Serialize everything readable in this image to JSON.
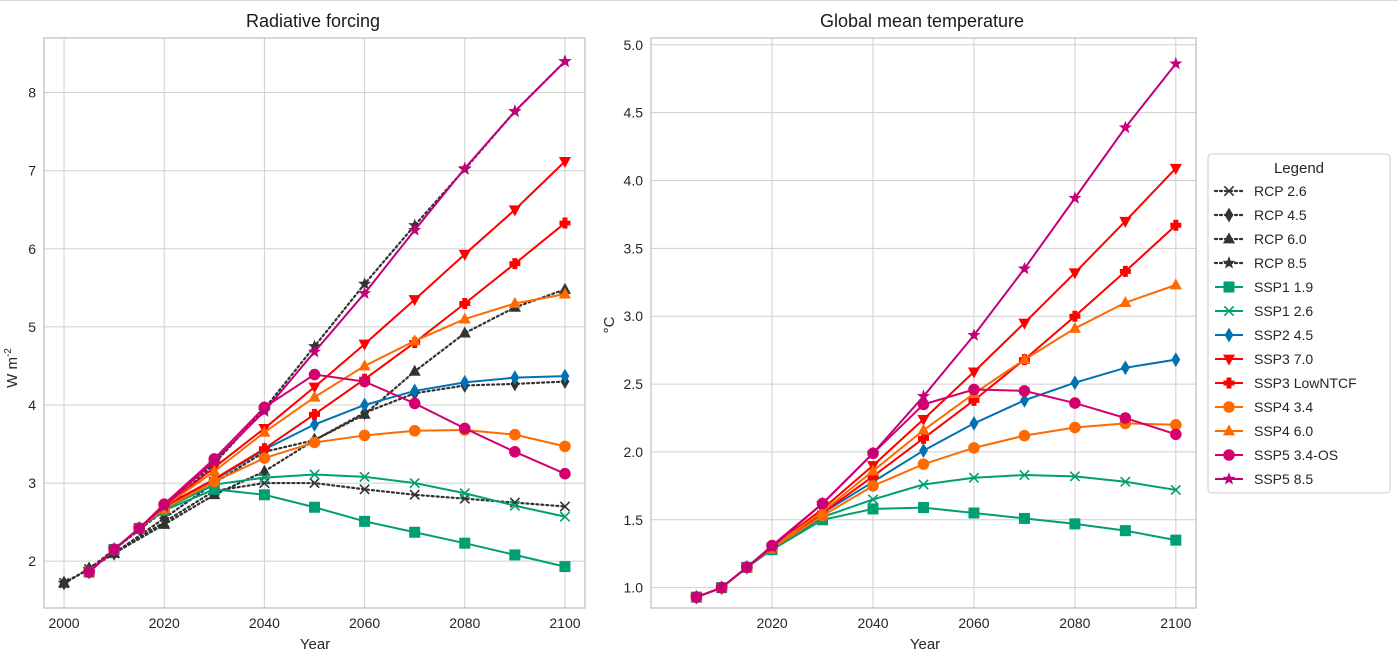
{
  "chart_data": [
    {
      "type": "line",
      "title": "Radiative forcing",
      "xlabel": "Year",
      "ylabel": "W m",
      "ylabel_sup": "-2",
      "xlim": [
        1996,
        2104
      ],
      "ylim": [
        1.4,
        8.7
      ],
      "xticks": [
        2000,
        2020,
        2040,
        2060,
        2080,
        2100
      ],
      "yticks": [
        2,
        3,
        4,
        5,
        6,
        7,
        8
      ],
      "grid": true,
      "series": [
        {
          "name": "RCP 2.6",
          "color": "#333333",
          "dash": true,
          "marker": "x",
          "x": [
            2000,
            2005,
            2010,
            2020,
            2030,
            2040,
            2050,
            2060,
            2070,
            2080,
            2090,
            2100
          ],
          "y": [
            1.72,
            1.9,
            2.1,
            2.5,
            2.9,
            3.0,
            3.0,
            2.92,
            2.85,
            2.8,
            2.75,
            2.7
          ]
        },
        {
          "name": "RCP 4.5",
          "color": "#333333",
          "dash": true,
          "marker": "diamond",
          "x": [
            2000,
            2005,
            2010,
            2020,
            2030,
            2040,
            2050,
            2060,
            2070,
            2080,
            2090,
            2100
          ],
          "y": [
            1.72,
            1.9,
            2.1,
            2.55,
            3.0,
            3.4,
            3.55,
            3.9,
            4.15,
            4.25,
            4.27,
            4.3
          ]
        },
        {
          "name": "RCP 6.0",
          "color": "#333333",
          "dash": true,
          "marker": "triangle",
          "x": [
            2000,
            2005,
            2010,
            2020,
            2030,
            2040,
            2050,
            2060,
            2070,
            2080,
            2090,
            2100
          ],
          "y": [
            1.72,
            1.9,
            2.1,
            2.47,
            2.85,
            3.15,
            3.55,
            3.88,
            4.43,
            4.92,
            5.25,
            5.48
          ]
        },
        {
          "name": "RCP 8.5",
          "color": "#333333",
          "dash": true,
          "marker": "star",
          "x": [
            2000,
            2005,
            2010,
            2020,
            2030,
            2040,
            2050,
            2060,
            2070,
            2080,
            2090,
            2100
          ],
          "y": [
            1.72,
            1.9,
            2.15,
            2.65,
            3.25,
            3.95,
            4.75,
            5.55,
            6.3,
            7.02,
            7.76,
            8.4
          ]
        },
        {
          "name": "SSP1 1.9",
          "color": "#009e73",
          "dash": false,
          "marker": "square",
          "x": [
            2005,
            2010,
            2015,
            2020,
            2030,
            2040,
            2050,
            2060,
            2070,
            2080,
            2090,
            2100
          ],
          "y": [
            1.86,
            2.15,
            2.42,
            2.65,
            2.92,
            2.85,
            2.69,
            2.51,
            2.37,
            2.23,
            2.08,
            1.93
          ]
        },
        {
          "name": "SSP1 2.6",
          "color": "#009e73",
          "dash": false,
          "marker": "x",
          "x": [
            2005,
            2010,
            2015,
            2020,
            2030,
            2040,
            2050,
            2060,
            2070,
            2080,
            2090,
            2100
          ],
          "y": [
            1.86,
            2.15,
            2.42,
            2.67,
            2.98,
            3.07,
            3.11,
            3.08,
            3.0,
            2.87,
            2.71,
            2.57
          ]
        },
        {
          "name": "SSP2 4.5",
          "color": "#0072b2",
          "dash": false,
          "marker": "diamond",
          "x": [
            2005,
            2010,
            2015,
            2020,
            2030,
            2040,
            2050,
            2060,
            2070,
            2080,
            2090,
            2100
          ],
          "y": [
            1.86,
            2.15,
            2.42,
            2.68,
            3.04,
            3.43,
            3.75,
            4.0,
            4.18,
            4.29,
            4.35,
            4.37
          ]
        },
        {
          "name": "SSP3 7.0",
          "color": "#ff0000",
          "dash": false,
          "marker": "triangle-down",
          "x": [
            2005,
            2010,
            2015,
            2020,
            2030,
            2040,
            2050,
            2060,
            2070,
            2080,
            2090,
            2100
          ],
          "y": [
            1.86,
            2.15,
            2.42,
            2.7,
            3.2,
            3.7,
            4.23,
            4.78,
            5.35,
            5.93,
            6.5,
            7.12
          ]
        },
        {
          "name": "SSP3 LowNTCF",
          "color": "#ff0000",
          "dash": false,
          "marker": "plus",
          "x": [
            2005,
            2010,
            2015,
            2020,
            2030,
            2040,
            2050,
            2060,
            2070,
            2080,
            2090,
            2100
          ],
          "y": [
            1.86,
            2.15,
            2.42,
            2.7,
            3.05,
            3.44,
            3.88,
            4.33,
            4.8,
            5.3,
            5.81,
            6.33
          ]
        },
        {
          "name": "SSP4 3.4",
          "color": "#ff6a00",
          "dash": false,
          "marker": "circle",
          "x": [
            2005,
            2010,
            2015,
            2020,
            2030,
            2040,
            2050,
            2060,
            2070,
            2080,
            2090,
            2100
          ],
          "y": [
            1.86,
            2.15,
            2.42,
            2.67,
            3.02,
            3.32,
            3.52,
            3.61,
            3.67,
            3.68,
            3.62,
            3.47
          ]
        },
        {
          "name": "SSP4 6.0",
          "color": "#ff6a00",
          "dash": false,
          "marker": "triangle",
          "x": [
            2005,
            2010,
            2015,
            2020,
            2030,
            2040,
            2050,
            2060,
            2070,
            2080,
            2090,
            2100
          ],
          "y": [
            1.86,
            2.15,
            2.42,
            2.7,
            3.15,
            3.65,
            4.1,
            4.5,
            4.82,
            5.1,
            5.3,
            5.42
          ]
        },
        {
          "name": "SSP5 3.4-OS",
          "color": "#d4006e",
          "dash": false,
          "marker": "circle",
          "x": [
            2005,
            2010,
            2015,
            2020,
            2030,
            2040,
            2050,
            2060,
            2070,
            2080,
            2090,
            2100
          ],
          "y": [
            1.86,
            2.15,
            2.42,
            2.73,
            3.31,
            3.97,
            4.39,
            4.3,
            4.02,
            3.7,
            3.4,
            3.12
          ]
        },
        {
          "name": "SSP5 8.5",
          "color": "#c2007a",
          "dash": false,
          "marker": "star",
          "x": [
            2005,
            2010,
            2015,
            2020,
            2030,
            2040,
            2050,
            2060,
            2070,
            2080,
            2090,
            2100
          ],
          "y": [
            1.86,
            2.15,
            2.42,
            2.7,
            3.28,
            3.92,
            4.68,
            5.43,
            6.24,
            7.03,
            7.76,
            8.4
          ]
        }
      ]
    },
    {
      "type": "line",
      "title": "Global mean temperature",
      "xlabel": "Year",
      "ylabel": "°C",
      "xlim": [
        1996,
        2104
      ],
      "ylim": [
        0.85,
        5.05
      ],
      "xticks": [
        2020,
        2040,
        2060,
        2080,
        2100
      ],
      "yticks": [
        "1.0",
        "1.5",
        "2.0",
        "2.5",
        "3.0",
        "3.5",
        "4.0",
        "4.5",
        "5.0"
      ],
      "grid": true,
      "series": [
        {
          "name": "SSP1 1.9",
          "color": "#009e73",
          "marker": "square",
          "x": [
            2005,
            2010,
            2015,
            2020,
            2030,
            2040,
            2050,
            2060,
            2070,
            2080,
            2090,
            2100
          ],
          "y": [
            0.93,
            1.0,
            1.15,
            1.28,
            1.5,
            1.58,
            1.59,
            1.55,
            1.51,
            1.47,
            1.42,
            1.35
          ]
        },
        {
          "name": "SSP1 2.6",
          "color": "#009e73",
          "marker": "x",
          "x": [
            2005,
            2010,
            2015,
            2020,
            2030,
            2040,
            2050,
            2060,
            2070,
            2080,
            2090,
            2100
          ],
          "y": [
            0.93,
            1.0,
            1.15,
            1.28,
            1.52,
            1.65,
            1.76,
            1.81,
            1.83,
            1.82,
            1.78,
            1.72
          ]
        },
        {
          "name": "SSP2 4.5",
          "color": "#0072b2",
          "marker": "diamond",
          "x": [
            2005,
            2010,
            2015,
            2020,
            2030,
            2040,
            2050,
            2060,
            2070,
            2080,
            2090,
            2100
          ],
          "y": [
            0.93,
            1.0,
            1.15,
            1.29,
            1.55,
            1.78,
            2.01,
            2.21,
            2.38,
            2.51,
            2.62,
            2.68
          ]
        },
        {
          "name": "SSP3 7.0",
          "color": "#ff0000",
          "marker": "triangle-down",
          "x": [
            2005,
            2010,
            2015,
            2020,
            2030,
            2040,
            2050,
            2060,
            2070,
            2080,
            2090,
            2100
          ],
          "y": [
            0.93,
            1.0,
            1.15,
            1.3,
            1.58,
            1.9,
            2.24,
            2.59,
            2.95,
            3.32,
            3.7,
            4.09
          ]
        },
        {
          "name": "SSP3 LowNTCF",
          "color": "#ff0000",
          "marker": "plus",
          "x": [
            2005,
            2010,
            2015,
            2020,
            2030,
            2040,
            2050,
            2060,
            2070,
            2080,
            2090,
            2100
          ],
          "y": [
            0.93,
            1.0,
            1.15,
            1.3,
            1.55,
            1.82,
            2.1,
            2.38,
            2.68,
            3.0,
            3.33,
            3.67
          ]
        },
        {
          "name": "SSP4 3.4",
          "color": "#ff6a00",
          "marker": "circle",
          "x": [
            2005,
            2010,
            2015,
            2020,
            2030,
            2040,
            2050,
            2060,
            2070,
            2080,
            2090,
            2100
          ],
          "y": [
            0.93,
            1.0,
            1.15,
            1.29,
            1.53,
            1.75,
            1.91,
            2.03,
            2.12,
            2.18,
            2.21,
            2.2
          ]
        },
        {
          "name": "SSP4 6.0",
          "color": "#ff6a00",
          "marker": "triangle",
          "x": [
            2005,
            2010,
            2015,
            2020,
            2030,
            2040,
            2050,
            2060,
            2070,
            2080,
            2090,
            2100
          ],
          "y": [
            0.93,
            1.0,
            1.15,
            1.3,
            1.56,
            1.86,
            2.16,
            2.43,
            2.68,
            2.91,
            3.1,
            3.23
          ]
        },
        {
          "name": "SSP5 3.4-OS",
          "color": "#d4006e",
          "marker": "circle",
          "x": [
            2005,
            2010,
            2015,
            2020,
            2030,
            2040,
            2050,
            2060,
            2070,
            2080,
            2090,
            2100
          ],
          "y": [
            0.93,
            1.0,
            1.15,
            1.31,
            1.62,
            1.99,
            2.35,
            2.46,
            2.45,
            2.36,
            2.25,
            2.13
          ]
        },
        {
          "name": "SSP5 8.5",
          "color": "#c2007a",
          "marker": "star",
          "x": [
            2005,
            2010,
            2015,
            2020,
            2030,
            2040,
            2050,
            2060,
            2070,
            2080,
            2090,
            2100
          ],
          "y": [
            0.93,
            1.0,
            1.15,
            1.3,
            1.62,
            1.99,
            2.41,
            2.86,
            3.35,
            3.87,
            4.39,
            4.86
          ]
        }
      ]
    }
  ],
  "legend": {
    "title": "Legend",
    "placement": "right",
    "entries": [
      {
        "label": "RCP 2.6",
        "color": "#333333",
        "dash": true,
        "marker": "x"
      },
      {
        "label": "RCP 4.5",
        "color": "#333333",
        "dash": true,
        "marker": "diamond"
      },
      {
        "label": "RCP 6.0",
        "color": "#333333",
        "dash": true,
        "marker": "triangle"
      },
      {
        "label": "RCP 8.5",
        "color": "#333333",
        "dash": true,
        "marker": "star"
      },
      {
        "label": "SSP1 1.9",
        "color": "#009e73",
        "dash": false,
        "marker": "square"
      },
      {
        "label": "SSP1 2.6",
        "color": "#009e73",
        "dash": false,
        "marker": "x"
      },
      {
        "label": "SSP2 4.5",
        "color": "#0072b2",
        "dash": false,
        "marker": "diamond"
      },
      {
        "label": "SSP3 7.0",
        "color": "#ff0000",
        "dash": false,
        "marker": "triangle-down"
      },
      {
        "label": "SSP3 LowNTCF",
        "color": "#ff0000",
        "dash": false,
        "marker": "plus"
      },
      {
        "label": "SSP4 3.4",
        "color": "#ff6a00",
        "dash": false,
        "marker": "circle"
      },
      {
        "label": "SSP4 6.0",
        "color": "#ff6a00",
        "dash": false,
        "marker": "triangle"
      },
      {
        "label": "SSP5 3.4-OS",
        "color": "#d4006e",
        "dash": false,
        "marker": "circle"
      },
      {
        "label": "SSP5 8.5",
        "color": "#c2007a",
        "dash": false,
        "marker": "star"
      }
    ]
  }
}
